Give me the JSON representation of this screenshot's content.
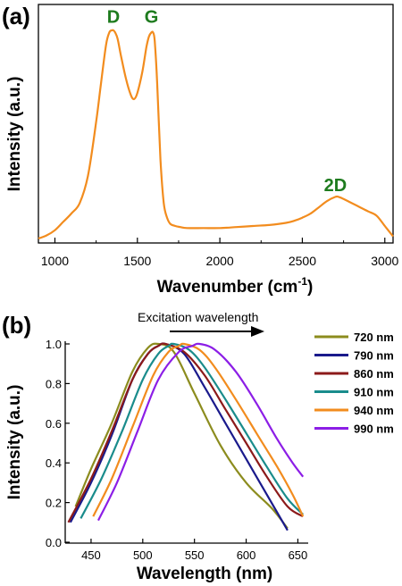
{
  "chart_data": [
    {
      "panel": "(a)",
      "type": "line",
      "xlabel": "Wavenumber (cm",
      "xlabel_sup": "-1",
      "xlabel_close": ")",
      "ylabel": "Intensity (a.u.)",
      "xlim": [
        900,
        3050
      ],
      "ylim": [
        0,
        1
      ],
      "xticks": [
        "1000",
        "1500",
        "2000",
        "2500",
        "3000"
      ],
      "yticks": false,
      "color": "#f28c1e",
      "annotations": [
        {
          "text": "D",
          "x": 1355,
          "y": 1.02
        },
        {
          "text": "G",
          "x": 1585,
          "y": 1.02
        },
        {
          "text": "2D",
          "x": 2700,
          "y": 0.21
        }
      ],
      "series": [
        {
          "x": [
            900,
            950,
            1000,
            1050,
            1100,
            1150,
            1200,
            1250,
            1280,
            1310,
            1330,
            1345,
            1355,
            1365,
            1380,
            1400,
            1430,
            1460,
            1480,
            1500,
            1530,
            1555,
            1570,
            1585,
            1595,
            1605,
            1620,
            1640,
            1660,
            1680,
            1700,
            1730,
            1760,
            1800,
            1900,
            2000,
            2100,
            2200,
            2300,
            2400,
            2450,
            2500,
            2550,
            2600,
            2650,
            2700,
            2720,
            2750,
            2800,
            2850,
            2900,
            2950,
            3000,
            3050
          ],
          "y": [
            0.0,
            0.015,
            0.04,
            0.08,
            0.12,
            0.17,
            0.3,
            0.56,
            0.75,
            0.93,
            0.99,
            1.0,
            1.0,
            0.99,
            0.96,
            0.88,
            0.77,
            0.69,
            0.67,
            0.7,
            0.8,
            0.92,
            0.97,
            0.99,
            0.99,
            0.95,
            0.75,
            0.38,
            0.17,
            0.1,
            0.07,
            0.06,
            0.055,
            0.05,
            0.05,
            0.05,
            0.055,
            0.06,
            0.065,
            0.075,
            0.085,
            0.1,
            0.12,
            0.15,
            0.18,
            0.2,
            0.2,
            0.19,
            0.17,
            0.15,
            0.13,
            0.11,
            0.06,
            0.01
          ]
        }
      ]
    },
    {
      "panel": "(b)",
      "type": "line",
      "xlabel": "Wavelength (nm)",
      "ylabel": "Intensity (a.u.)",
      "xlim": [
        425,
        660
      ],
      "ylim": [
        0,
        1.05
      ],
      "xticks": [
        "450",
        "500",
        "550",
        "600",
        "650"
      ],
      "yticks": [
        "0.0",
        "0.2",
        "0.4",
        "0.6",
        "0.8",
        "1.0"
      ],
      "annotation": "Excitation wavelength",
      "legend_position": "right",
      "series": [
        {
          "name": "720 nm",
          "color": "#8c8c1e",
          "x": [
            435,
            450,
            470,
            490,
            505,
            515,
            530,
            550,
            575,
            600,
            625,
            640
          ],
          "y": [
            0.18,
            0.37,
            0.6,
            0.86,
            0.98,
            1.0,
            0.96,
            0.75,
            0.49,
            0.3,
            0.17,
            0.07
          ]
        },
        {
          "name": "790 nm",
          "color": "#1a1a8c",
          "x": [
            430,
            450,
            470,
            490,
            505,
            515,
            522,
            540,
            560,
            580,
            600,
            620,
            640
          ],
          "y": [
            0.1,
            0.3,
            0.54,
            0.82,
            0.95,
            0.99,
            1.0,
            0.95,
            0.78,
            0.6,
            0.42,
            0.24,
            0.06
          ]
        },
        {
          "name": "860 nm",
          "color": "#8c1a1a",
          "x": [
            428,
            450,
            470,
            490,
            505,
            515,
            522,
            540,
            560,
            580,
            600,
            620,
            640,
            655
          ],
          "y": [
            0.1,
            0.32,
            0.56,
            0.82,
            0.95,
            0.99,
            1.0,
            0.96,
            0.84,
            0.67,
            0.5,
            0.33,
            0.18,
            0.13
          ]
        },
        {
          "name": "910 nm",
          "color": "#1a8c8c",
          "x": [
            440,
            460,
            480,
            500,
            515,
            525,
            530,
            545,
            560,
            580,
            600,
            620,
            640,
            655
          ],
          "y": [
            0.12,
            0.32,
            0.56,
            0.82,
            0.95,
            0.99,
            1.0,
            0.97,
            0.88,
            0.72,
            0.55,
            0.38,
            0.22,
            0.14
          ]
        },
        {
          "name": "940 nm",
          "color": "#f28c1e",
          "x": [
            452,
            470,
            490,
            510,
            525,
            535,
            540,
            555,
            570,
            590,
            610,
            630,
            645,
            655
          ],
          "y": [
            0.13,
            0.32,
            0.58,
            0.84,
            0.96,
            0.99,
            1.0,
            0.97,
            0.88,
            0.72,
            0.55,
            0.38,
            0.24,
            0.13
          ]
        },
        {
          "name": "990 nm",
          "color": "#8c1ee6",
          "x": [
            457,
            475,
            495,
            515,
            535,
            548,
            555,
            570,
            590,
            610,
            630,
            645,
            655
          ],
          "y": [
            0.11,
            0.3,
            0.56,
            0.82,
            0.96,
            0.99,
            1.0,
            0.97,
            0.86,
            0.7,
            0.52,
            0.4,
            0.33
          ]
        }
      ]
    }
  ]
}
